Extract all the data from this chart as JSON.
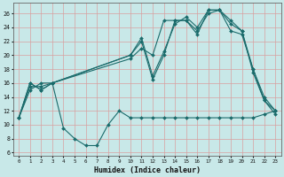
{
  "xlabel": "Humidex (Indice chaleur)",
  "background_color": "#c8e8e8",
  "grid_color": "#d8a0a0",
  "line_color": "#1a6b6b",
  "x_ticks": [
    0,
    1,
    2,
    3,
    4,
    5,
    6,
    7,
    8,
    9,
    10,
    11,
    12,
    13,
    14,
    15,
    16,
    17,
    18,
    19,
    20,
    21,
    22,
    23
  ],
  "y_ticks": [
    6,
    8,
    10,
    12,
    14,
    16,
    18,
    20,
    22,
    24,
    26
  ],
  "xlim": [
    -0.5,
    23.5
  ],
  "ylim": [
    5.5,
    27.5
  ],
  "series1_x": [
    0,
    1,
    2,
    3,
    4,
    5,
    6,
    7,
    8,
    9,
    10,
    11,
    12,
    13,
    14,
    15,
    16,
    17,
    18,
    19,
    20,
    21,
    22,
    23
  ],
  "series1_y": [
    11,
    16,
    15,
    16,
    9.5,
    8,
    7,
    7,
    10,
    12,
    11,
    11,
    11,
    11,
    11,
    11,
    11,
    11,
    11,
    11,
    11,
    11,
    11.5,
    12
  ],
  "series2_x": [
    0,
    1,
    2,
    3,
    10,
    11,
    12,
    13,
    14,
    15,
    16,
    17,
    18,
    19,
    20,
    21,
    22,
    23
  ],
  "series2_y": [
    11,
    16,
    15,
    16,
    20,
    22,
    16.5,
    20,
    25,
    25,
    23.5,
    26,
    26.5,
    24.5,
    23.5,
    18,
    13.5,
    12
  ],
  "series3_x": [
    0,
    1,
    2,
    3,
    10,
    11,
    12,
    13,
    14,
    15,
    16,
    17,
    18,
    19,
    20,
    21,
    22,
    23
  ],
  "series3_y": [
    11,
    15.5,
    15.5,
    16,
    20,
    22.5,
    17,
    20.5,
    24.5,
    25.5,
    24,
    26.5,
    26.5,
    25,
    23.5,
    17.5,
    13.5,
    11.5
  ],
  "series4_x": [
    0,
    1,
    2,
    3,
    10,
    11,
    12,
    13,
    14,
    15,
    16,
    17,
    18,
    19,
    20,
    21,
    22,
    23
  ],
  "series4_y": [
    11,
    15,
    16,
    16,
    19.5,
    21,
    20,
    25,
    25,
    25,
    23,
    26.5,
    26.5,
    23.5,
    23,
    18,
    14,
    12
  ]
}
